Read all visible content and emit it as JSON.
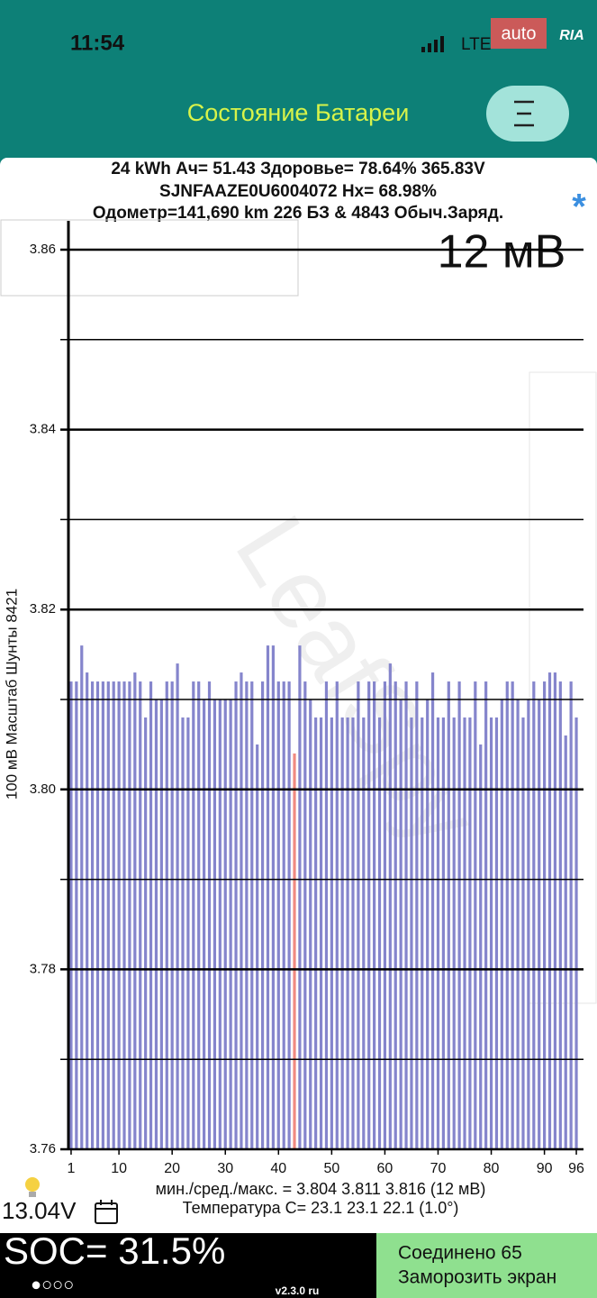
{
  "status_bar": {
    "time": "11:54",
    "network": "LTE",
    "watermark_auto": "auto",
    "watermark_ria": "RIA"
  },
  "header": {
    "title": "Состояние Батареи"
  },
  "info": {
    "line1": "24 kWh  Ач= 51.43  Здоровье= 78.64%  365.83V",
    "line2": "SJNFAAZE0U6004072   Hx= 68.98%",
    "line3": "Одометр=141,690 km 226 БЗ & 4843 Обыч.Заряд.",
    "marker": "*",
    "scale_label": "12 мВ"
  },
  "chart_data": {
    "type": "bar",
    "watermark": "LeafSpy",
    "y_label": "100 мВ Масштаб  Шунты 8421",
    "x": [
      1,
      2,
      3,
      4,
      5,
      6,
      7,
      8,
      9,
      10,
      11,
      12,
      13,
      14,
      15,
      16,
      17,
      18,
      19,
      20,
      21,
      22,
      23,
      24,
      25,
      26,
      27,
      28,
      29,
      30,
      31,
      32,
      33,
      34,
      35,
      36,
      37,
      38,
      39,
      40,
      41,
      42,
      43,
      44,
      45,
      46,
      47,
      48,
      49,
      50,
      51,
      52,
      53,
      54,
      55,
      56,
      57,
      58,
      59,
      60,
      61,
      62,
      63,
      64,
      65,
      66,
      67,
      68,
      69,
      70,
      71,
      72,
      73,
      74,
      75,
      76,
      77,
      78,
      79,
      80,
      81,
      82,
      83,
      84,
      85,
      86,
      87,
      88,
      89,
      90,
      91,
      92,
      93,
      94,
      95,
      96
    ],
    "values": [
      3.812,
      3.812,
      3.816,
      3.813,
      3.812,
      3.812,
      3.812,
      3.812,
      3.812,
      3.812,
      3.812,
      3.812,
      3.813,
      3.812,
      3.808,
      3.812,
      3.81,
      3.81,
      3.812,
      3.812,
      3.814,
      3.808,
      3.808,
      3.812,
      3.812,
      3.81,
      3.812,
      3.81,
      3.81,
      3.81,
      3.81,
      3.812,
      3.813,
      3.812,
      3.812,
      3.805,
      3.812,
      3.816,
      3.816,
      3.812,
      3.812,
      3.812,
      3.804,
      3.816,
      3.812,
      3.81,
      3.808,
      3.808,
      3.812,
      3.808,
      3.812,
      3.808,
      3.808,
      3.808,
      3.812,
      3.808,
      3.812,
      3.812,
      3.808,
      3.812,
      3.814,
      3.812,
      3.81,
      3.812,
      3.808,
      3.812,
      3.808,
      3.81,
      3.813,
      3.808,
      3.808,
      3.812,
      3.808,
      3.812,
      3.808,
      3.808,
      3.812,
      3.805,
      3.812,
      3.808,
      3.808,
      3.81,
      3.812,
      3.812,
      3.81,
      3.808,
      3.81,
      3.812,
      3.81,
      3.812,
      3.813,
      3.813,
      3.812,
      3.806,
      3.812,
      3.808
    ],
    "color": "#8585cc",
    "min_color": "#f08a80",
    "xlim": [
      0.5,
      96.5
    ],
    "xticks": [
      1,
      10,
      20,
      30,
      40,
      50,
      60,
      70,
      80,
      90,
      96
    ],
    "ylim": [
      3.76,
      3.86
    ],
    "yticks": [
      {
        "value": 3.76,
        "label": "3.76"
      },
      {
        "value": 3.78,
        "label": "3.78"
      },
      {
        "value": 3.8,
        "label": "3.80"
      },
      {
        "value": 3.82,
        "label": "3.82"
      },
      {
        "value": 3.84,
        "label": "3.84"
      },
      {
        "value": 3.86,
        "label": "3.86"
      }
    ],
    "yminor": [
      3.77,
      3.79,
      3.81,
      3.83,
      3.85
    ],
    "grid": true
  },
  "stats": {
    "minmax": "мин./сред./макс. = 3.804 3.811 3.816  (12 мВ)",
    "temperature": "Температура С= 23.1  23.1  22.1  (1.0°)",
    "voltage": "13.04V"
  },
  "footer": {
    "soc": "SOC= 31.5%",
    "dots": "●○○○",
    "version": "v2.3.0 ru",
    "connected": "Соединено 65",
    "freeze": "Заморозить экран"
  }
}
